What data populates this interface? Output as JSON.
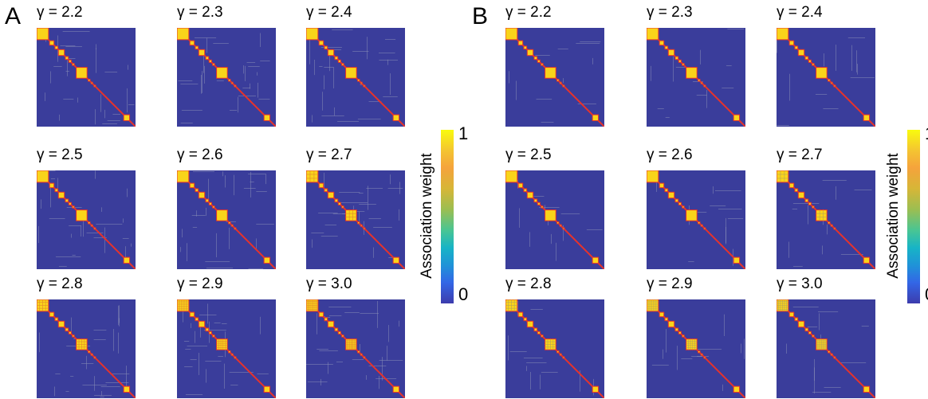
{
  "panels": [
    {
      "letter": "A",
      "tiles": [
        {
          "gamma": "γ = 2.2"
        },
        {
          "gamma": "γ = 2.3"
        },
        {
          "gamma": "γ = 2.4"
        },
        {
          "gamma": "γ = 2.5"
        },
        {
          "gamma": "γ = 2.6"
        },
        {
          "gamma": "γ = 2.7"
        },
        {
          "gamma": "γ = 2.8"
        },
        {
          "gamma": "γ = 2.9"
        },
        {
          "gamma": "γ = 3.0"
        }
      ],
      "colorbar": {
        "label": "Association weight",
        "max": "1",
        "min": "0"
      }
    },
    {
      "letter": "B",
      "tiles": [
        {
          "gamma": "γ = 2.2"
        },
        {
          "gamma": "γ = 2.3"
        },
        {
          "gamma": "γ = 2.4"
        },
        {
          "gamma": "γ = 2.5"
        },
        {
          "gamma": "γ = 2.6"
        },
        {
          "gamma": "γ = 2.7"
        },
        {
          "gamma": "γ = 2.8"
        },
        {
          "gamma": "γ = 2.9"
        },
        {
          "gamma": "γ = 3.0"
        }
      ],
      "colorbar": {
        "label": "Association weight",
        "max": "1",
        "min": "0"
      }
    }
  ],
  "colors": {
    "background": "#3a3d9b",
    "diagonal": "#e8322a",
    "block_fill": "#f9d41a",
    "block_edge": "#e8322a",
    "speckle": "#8a8fb8"
  }
}
